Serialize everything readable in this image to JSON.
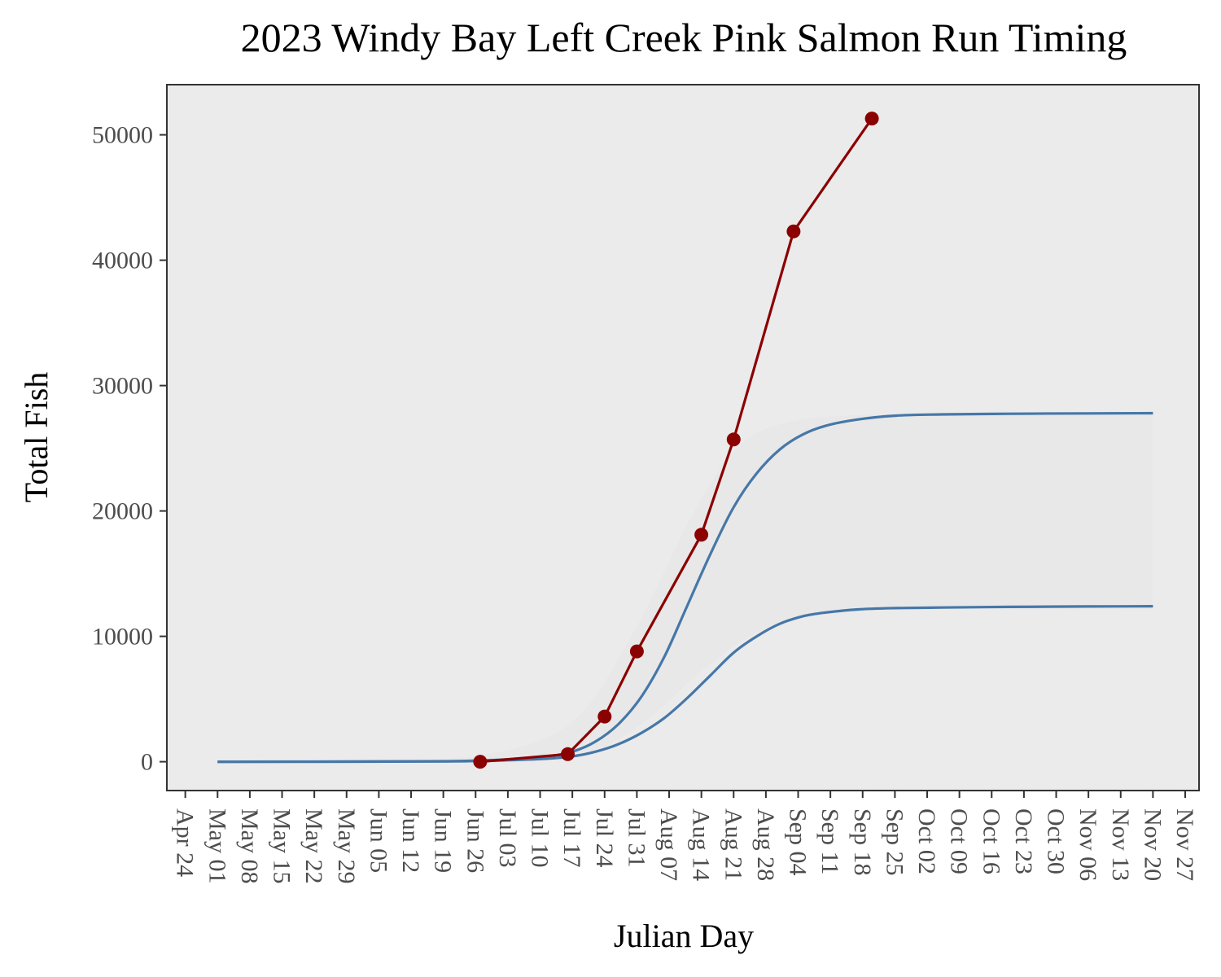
{
  "chart_data": {
    "type": "line",
    "title": "2023 Windy Bay Left Creek Pink Salmon Run Timing",
    "xlabel": "Julian Day",
    "ylabel": "Total Fish",
    "x_scale": "date",
    "xlim": [
      "2023-04-20",
      "2023-11-30"
    ],
    "ylim": [
      -2300,
      54000
    ],
    "y_ticks": [
      0,
      10000,
      20000,
      30000,
      40000,
      50000
    ],
    "x_ticks": [
      "2023-04-24",
      "2023-05-01",
      "2023-05-08",
      "2023-05-15",
      "2023-05-22",
      "2023-05-29",
      "2023-06-05",
      "2023-06-12",
      "2023-06-19",
      "2023-06-26",
      "2023-07-03",
      "2023-07-10",
      "2023-07-17",
      "2023-07-24",
      "2023-07-31",
      "2023-08-07",
      "2023-08-14",
      "2023-08-21",
      "2023-08-28",
      "2023-09-04",
      "2023-09-11",
      "2023-09-18",
      "2023-09-25",
      "2023-10-02",
      "2023-10-09",
      "2023-10-16",
      "2023-10-23",
      "2023-10-30",
      "2023-11-06",
      "2023-11-13",
      "2023-11-20",
      "2023-11-27"
    ],
    "x_tick_labels": [
      "Apr 24",
      "May 01",
      "May 08",
      "May 15",
      "May 22",
      "May 29",
      "Jun 05",
      "Jun 12",
      "Jun 19",
      "Jun 26",
      "Jul 03",
      "Jul 10",
      "Jul 17",
      "Jul 24",
      "Jul 31",
      "Aug 07",
      "Aug 14",
      "Aug 21",
      "Aug 28",
      "Sep 04",
      "Sep 11",
      "Sep 18",
      "Sep 25",
      "Oct 02",
      "Oct 09",
      "Oct 16",
      "Oct 23",
      "Oct 30",
      "Nov 06",
      "Nov 13",
      "Nov 20",
      "Nov 27"
    ],
    "grid": false,
    "panel_background": "#ebebeb",
    "band": {
      "x": [
        "2023-05-01",
        "2023-06-01",
        "2023-06-20",
        "2023-06-28",
        "2023-07-05",
        "2023-07-12",
        "2023-07-17",
        "2023-07-22",
        "2023-07-27",
        "2023-08-01",
        "2023-08-06",
        "2023-08-11",
        "2023-08-16",
        "2023-08-21",
        "2023-08-26",
        "2023-08-31",
        "2023-09-05",
        "2023-09-10",
        "2023-09-17",
        "2023-09-25",
        "2023-10-05",
        "2023-10-20",
        "2023-11-05",
        "2023-11-20"
      ],
      "lower": [
        0,
        0,
        30,
        80,
        200,
        350,
        600,
        1000,
        1800,
        3000,
        4500,
        6300,
        7800,
        9200,
        10300,
        11100,
        11500,
        11800,
        12000,
        12100,
        12200,
        12200,
        12200,
        12200
      ],
      "upper": [
        0,
        30,
        250,
        600,
        1100,
        2000,
        3200,
        5200,
        8200,
        11500,
        15200,
        19000,
        22200,
        24800,
        26200,
        26900,
        27300,
        27500,
        27650,
        27700,
        27750,
        27800,
        27800,
        27800
      ],
      "color": "#e8e8e8"
    },
    "series": [
      {
        "x": [
          "2023-05-01",
          "2023-06-01",
          "2023-06-20",
          "2023-06-28",
          "2023-07-05",
          "2023-07-12",
          "2023-07-17",
          "2023-07-22",
          "2023-07-27",
          "2023-08-01",
          "2023-08-06",
          "2023-08-11",
          "2023-08-16",
          "2023-08-21",
          "2023-08-26",
          "2023-08-31",
          "2023-09-05",
          "2023-09-10",
          "2023-09-17",
          "2023-09-25",
          "2023-10-05",
          "2023-10-20",
          "2023-11-05",
          "2023-11-20"
        ],
        "values": [
          0,
          10,
          40,
          110,
          230,
          440,
          800,
          1600,
          3000,
          5200,
          8400,
          12500,
          16600,
          20300,
          23000,
          24900,
          26100,
          26800,
          27300,
          27600,
          27700,
          27750,
          27780,
          27800
        ],
        "color": "#4677a8"
      },
      {
        "x": [
          "2023-05-01",
          "2023-06-01",
          "2023-06-20",
          "2023-06-28",
          "2023-07-05",
          "2023-07-12",
          "2023-07-17",
          "2023-07-22",
          "2023-07-27",
          "2023-08-01",
          "2023-08-06",
          "2023-08-11",
          "2023-08-16",
          "2023-08-21",
          "2023-08-26",
          "2023-08-31",
          "2023-09-05",
          "2023-09-10",
          "2023-09-17",
          "2023-09-25",
          "2023-10-05",
          "2023-10-20",
          "2023-11-05",
          "2023-11-20"
        ],
        "values": [
          0,
          5,
          30,
          70,
          140,
          260,
          430,
          800,
          1400,
          2300,
          3500,
          5100,
          6900,
          8700,
          10000,
          11000,
          11600,
          11900,
          12150,
          12250,
          12300,
          12350,
          12380,
          12400
        ],
        "color": "#4677a8"
      },
      {
        "x": [
          "2023-06-27",
          "2023-07-16",
          "2023-07-24",
          "2023-07-31",
          "2023-08-14",
          "2023-08-21",
          "2023-09-03",
          "2023-09-20"
        ],
        "values": [
          0,
          600,
          3600,
          8800,
          18100,
          25700,
          42300,
          51300
        ],
        "color": "#8b0000",
        "markers": true
      }
    ]
  }
}
